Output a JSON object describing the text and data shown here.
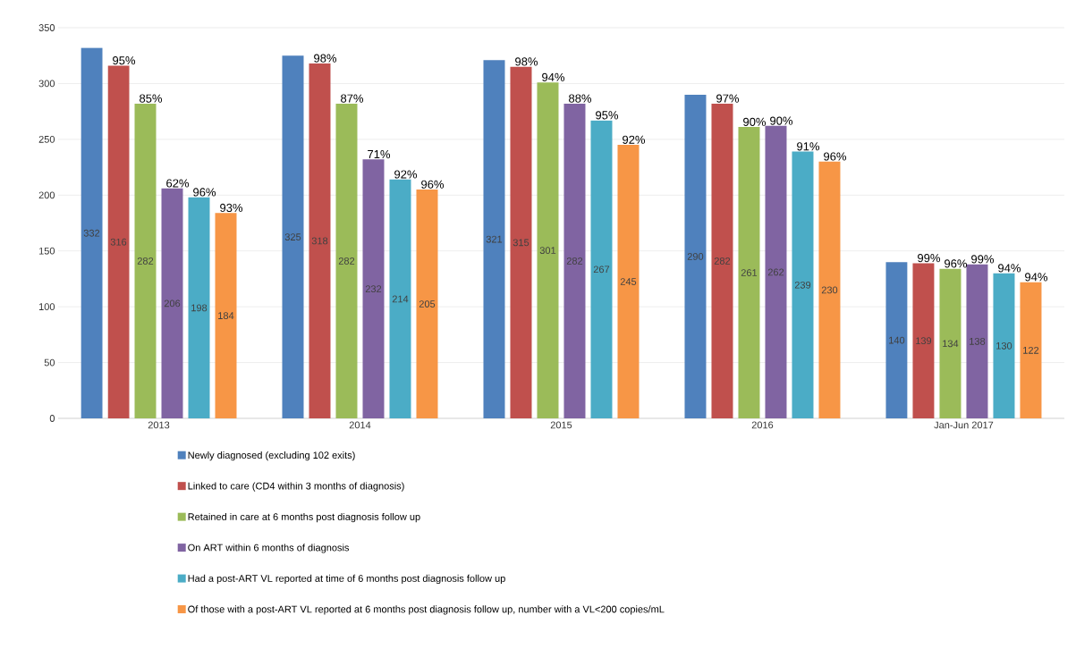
{
  "chart_data": {
    "type": "bar",
    "categories": [
      "2013",
      "2014",
      "2015",
      "2016",
      "Jan-Jun 2017"
    ],
    "series": [
      {
        "name": "Newly diagnosed (excluding 102 exits)",
        "color": "#4f81bd",
        "values": [
          332,
          325,
          321,
          290,
          140
        ]
      },
      {
        "name": "Linked to care (CD4 within 3 months of diagnosis)",
        "color": "#c0504d",
        "values": [
          316,
          318,
          315,
          282,
          139
        ]
      },
      {
        "name": "Retained in care at 6 months post diagnosis follow up",
        "color": "#9bbb59",
        "values": [
          282,
          282,
          301,
          261,
          134
        ]
      },
      {
        "name": "On ART within 6 months of diagnosis",
        "color": "#8064a2",
        "values": [
          206,
          232,
          282,
          262,
          138
        ]
      },
      {
        "name": "Had a post-ART VL reported at time of 6 months post diagnosis follow up",
        "color": "#4bacc6",
        "values": [
          198,
          214,
          267,
          239,
          130
        ]
      },
      {
        "name": "Of those with a post-ART VL reported at 6 months post diagnosis follow up, number with a VL<200 copies/mL",
        "color": "#f79646",
        "values": [
          184,
          205,
          245,
          230,
          122
        ]
      }
    ],
    "annotations": [
      "95%",
      "98%",
      "98%",
      "97%",
      "99%",
      "85%",
      "87%",
      "94%",
      "90%",
      "96%",
      "62%",
      "71%",
      "88%",
      "90%",
      "99%",
      "96%",
      "92%",
      "95%",
      "91%",
      "94%",
      "93%",
      "96%",
      "92%",
      "96%",
      "94%"
    ],
    "ylim": [
      0,
      350
    ],
    "yticks": [
      0,
      50,
      100,
      150,
      200,
      250,
      300,
      350
    ],
    "grid": "y",
    "legend": "bottom",
    "data_labels": true
  }
}
